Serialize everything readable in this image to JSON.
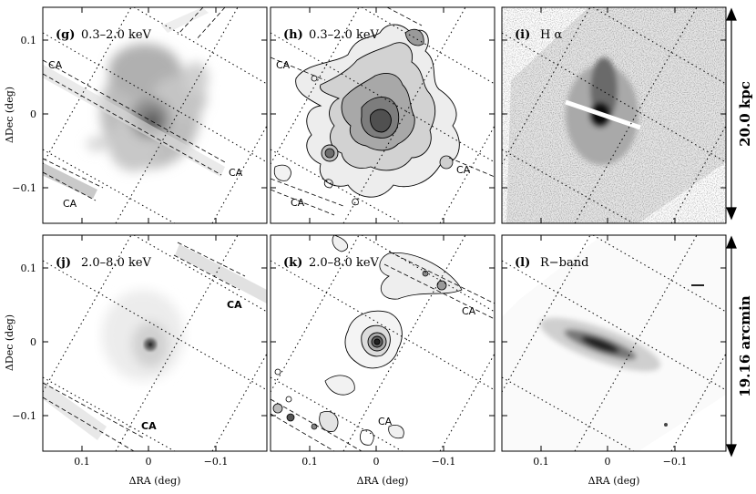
{
  "figure": {
    "panels": [
      {
        "id": "g",
        "label": "(g)",
        "text": "0.3–2.0 keV",
        "kind": "soft",
        "ca": [
          "CA",
          "CA",
          "CA"
        ]
      },
      {
        "id": "h",
        "label": "(h)",
        "text": "0.3–2.0 keV",
        "kind": "soft-contour",
        "ca": [
          "CA",
          "CA",
          "CA"
        ]
      },
      {
        "id": "i",
        "label": "(i)",
        "text": "H α",
        "kind": "halpha",
        "ca": []
      },
      {
        "id": "j",
        "label": "(j)",
        "text": "2.0–8.0 keV",
        "kind": "hard",
        "ca": [
          "CA",
          "CA"
        ]
      },
      {
        "id": "k",
        "label": "(k)",
        "text": "2.0–8.0 keV",
        "kind": "hard-contour",
        "ca": [
          "CA",
          "CA"
        ]
      },
      {
        "id": "l",
        "label": "(l)",
        "text": "R−band",
        "kind": "rband",
        "ca": []
      }
    ],
    "axes": {
      "ylabel": "ΔDec (deg)",
      "xlabel": "ΔRA (deg)",
      "yticks": [
        "0.1",
        "0",
        "−0.1"
      ],
      "xticks": [
        "0.1",
        "0",
        "−0.1"
      ]
    },
    "scale_top": "20.0 kpc",
    "scale_bottom": "19.16 arcmin"
  }
}
